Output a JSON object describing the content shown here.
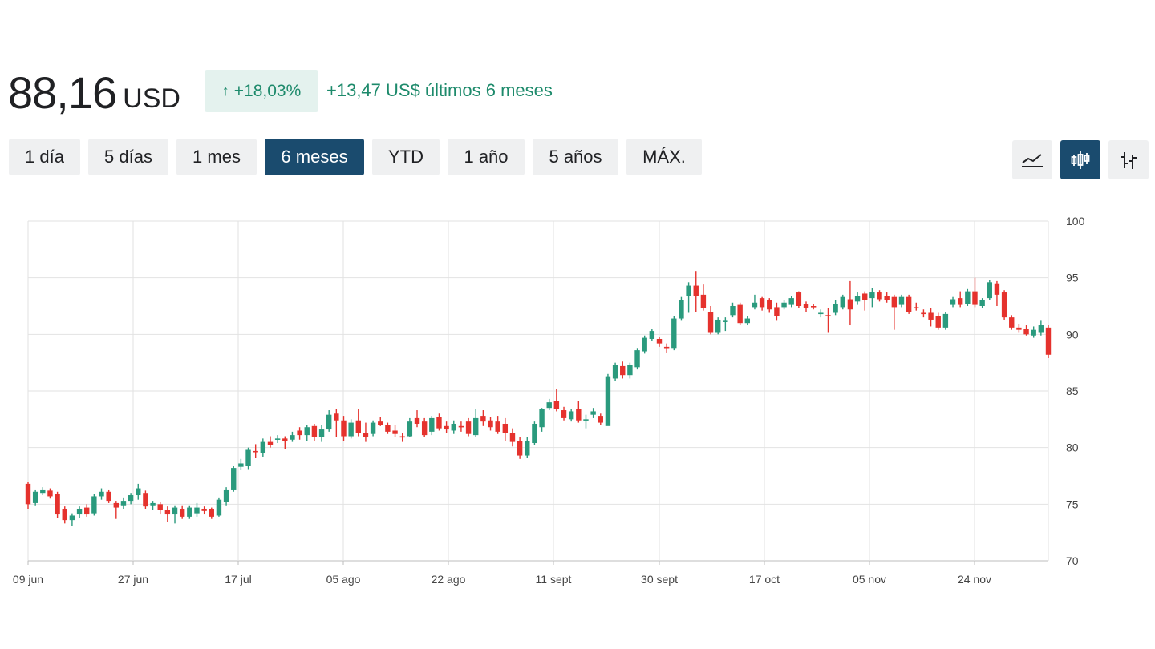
{
  "quote": {
    "price": "88,16",
    "currency": "USD",
    "change_percent": "+18,03%",
    "change_percent_arrow": "↑",
    "change_text": "+13,47 US$ últimos 6 meses"
  },
  "ranges": [
    {
      "label": "1 día",
      "active": false
    },
    {
      "label": "5 días",
      "active": false
    },
    {
      "label": "1 mes",
      "active": false
    },
    {
      "label": "6 meses",
      "active": true
    },
    {
      "label": "YTD",
      "active": false
    },
    {
      "label": "1 año",
      "active": false
    },
    {
      "label": "5 años",
      "active": false
    },
    {
      "label": "MÁX.",
      "active": false
    }
  ],
  "chart_types": [
    {
      "icon": "line-chart-icon",
      "active": false
    },
    {
      "icon": "candlestick-chart-icon",
      "active": true
    },
    {
      "icon": "ohlc-chart-icon",
      "active": false
    }
  ],
  "colors": {
    "up": "#2a9a7d",
    "down": "#e5322d",
    "accent": "#1a4b6e",
    "badge_bg": "#e4f2ee",
    "badge_text": "#1d8a6b",
    "grid": "#e2e2e2"
  },
  "chart_data": {
    "type": "candlestick",
    "x_ticks": [
      "09 jun",
      "27 jun",
      "17 jul",
      "05 ago",
      "22 ago",
      "11 sept",
      "30 sept",
      "17 oct",
      "05 nov",
      "24 nov"
    ],
    "y_ticks": [
      "100",
      "95",
      "90",
      "85",
      "80",
      "75",
      "70"
    ],
    "ylim": [
      70,
      100
    ],
    "grid": true,
    "series": [
      [
        76.8,
        75.0,
        77.0,
        74.6
      ],
      [
        75.1,
        76.1,
        76.3,
        74.9
      ],
      [
        76.0,
        76.3,
        76.5,
        75.8
      ],
      [
        76.2,
        75.7,
        76.4,
        75.5
      ],
      [
        75.9,
        74.1,
        76.1,
        73.8
      ],
      [
        74.6,
        73.6,
        74.8,
        73.3
      ],
      [
        73.6,
        74.0,
        74.2,
        73.1
      ],
      [
        74.1,
        74.6,
        74.8,
        73.8
      ],
      [
        74.7,
        74.1,
        75.0,
        73.9
      ],
      [
        74.2,
        75.7,
        75.9,
        74.0
      ],
      [
        75.7,
        76.1,
        76.4,
        75.4
      ],
      [
        76.1,
        75.3,
        76.3,
        75.1
      ],
      [
        75.1,
        74.7,
        75.3,
        73.7
      ],
      [
        74.9,
        75.3,
        75.6,
        74.6
      ],
      [
        75.3,
        75.8,
        76.0,
        75.0
      ],
      [
        75.8,
        76.4,
        76.8,
        75.4
      ],
      [
        76.0,
        74.8,
        76.2,
        74.6
      ],
      [
        74.9,
        75.1,
        75.3,
        74.5
      ],
      [
        75.0,
        74.5,
        75.2,
        74.1
      ],
      [
        74.5,
        74.1,
        74.8,
        73.4
      ],
      [
        74.1,
        74.7,
        74.9,
        73.3
      ],
      [
        74.6,
        73.9,
        74.9,
        73.7
      ],
      [
        73.9,
        74.7,
        74.9,
        73.7
      ],
      [
        74.2,
        74.7,
        75.1,
        73.9
      ],
      [
        74.6,
        74.4,
        74.8,
        74.1
      ],
      [
        74.6,
        73.9,
        74.7,
        73.7
      ],
      [
        74.0,
        75.4,
        75.6,
        73.9
      ],
      [
        75.2,
        76.3,
        76.5,
        74.9
      ],
      [
        76.3,
        78.2,
        78.4,
        76.1
      ],
      [
        78.3,
        78.6,
        79.0,
        78.0
      ],
      [
        78.4,
        79.8,
        80.0,
        78.1
      ],
      [
        79.7,
        79.6,
        80.3,
        79.1
      ],
      [
        79.5,
        80.5,
        80.8,
        79.2
      ],
      [
        80.5,
        80.2,
        81.0,
        80.0
      ],
      [
        80.7,
        80.8,
        81.1,
        80.4
      ],
      [
        80.8,
        80.6,
        81.0,
        79.9
      ],
      [
        80.7,
        81.1,
        81.4,
        80.5
      ],
      [
        81.5,
        81.1,
        81.8,
        80.7
      ],
      [
        81.1,
        81.8,
        82.0,
        80.6
      ],
      [
        81.9,
        80.9,
        82.1,
        80.6
      ],
      [
        80.9,
        81.6,
        82.0,
        80.5
      ],
      [
        81.6,
        82.9,
        83.3,
        81.4
      ],
      [
        83.0,
        82.4,
        83.4,
        80.9
      ],
      [
        82.4,
        81.0,
        82.8,
        80.6
      ],
      [
        81.0,
        82.2,
        82.5,
        80.8
      ],
      [
        82.4,
        81.3,
        83.4,
        81.0
      ],
      [
        81.3,
        80.9,
        82.2,
        80.5
      ],
      [
        81.2,
        82.2,
        82.4,
        81.0
      ],
      [
        82.3,
        82.0,
        82.7,
        81.9
      ],
      [
        82.0,
        81.4,
        82.2,
        81.2
      ],
      [
        81.5,
        81.2,
        82.0,
        80.9
      ],
      [
        81.0,
        80.9,
        81.3,
        80.5
      ],
      [
        81.0,
        82.3,
        82.6,
        80.9
      ],
      [
        82.6,
        82.1,
        83.3,
        81.8
      ],
      [
        82.3,
        81.1,
        82.6,
        80.9
      ],
      [
        81.4,
        82.6,
        82.8,
        81.1
      ],
      [
        82.7,
        81.7,
        83.0,
        81.5
      ],
      [
        81.9,
        81.6,
        82.3,
        81.3
      ],
      [
        81.5,
        82.1,
        82.4,
        81.2
      ],
      [
        81.9,
        81.8,
        82.3,
        81.4
      ],
      [
        82.3,
        81.2,
        82.6,
        81.0
      ],
      [
        81.1,
        82.6,
        83.4,
        80.9
      ],
      [
        82.8,
        82.3,
        83.3,
        81.9
      ],
      [
        82.4,
        81.8,
        82.7,
        81.5
      ],
      [
        82.3,
        81.4,
        82.8,
        81.2
      ],
      [
        82.1,
        81.3,
        82.6,
        80.6
      ],
      [
        81.3,
        80.5,
        81.7,
        80.1
      ],
      [
        80.6,
        79.3,
        80.9,
        79.0
      ],
      [
        79.3,
        80.6,
        80.9,
        79.1
      ],
      [
        80.4,
        82.1,
        82.3,
        80.2
      ],
      [
        81.8,
        83.4,
        83.5,
        81.4
      ],
      [
        83.5,
        84.0,
        84.3,
        83.3
      ],
      [
        84.1,
        83.4,
        85.2,
        83.2
      ],
      [
        83.3,
        82.6,
        83.6,
        82.4
      ],
      [
        82.5,
        83.2,
        83.4,
        82.3
      ],
      [
        83.4,
        82.4,
        84.1,
        82.2
      ],
      [
        82.4,
        82.5,
        82.9,
        81.7
      ],
      [
        82.9,
        83.2,
        83.5,
        82.6
      ],
      [
        82.8,
        82.2,
        83.0,
        82.0
      ],
      [
        81.9,
        86.3,
        86.5,
        83.6
      ],
      [
        86.1,
        87.3,
        87.5,
        85.9
      ],
      [
        87.2,
        86.4,
        87.6,
        86.1
      ],
      [
        86.4,
        87.3,
        87.5,
        86.1
      ],
      [
        87.1,
        88.6,
        88.8,
        86.9
      ],
      [
        88.5,
        89.7,
        89.9,
        88.3
      ],
      [
        89.6,
        90.3,
        90.5,
        89.4
      ],
      [
        89.6,
        89.2,
        89.8,
        88.9
      ],
      [
        88.9,
        88.8,
        89.2,
        88.4
      ],
      [
        88.8,
        91.4,
        91.6,
        88.6
      ],
      [
        91.4,
        93.0,
        93.3,
        91.2
      ],
      [
        93.4,
        94.3,
        94.6,
        91.9
      ],
      [
        94.3,
        93.4,
        95.6,
        92.0
      ],
      [
        93.5,
        92.3,
        94.4,
        92.1
      ],
      [
        92.0,
        90.2,
        92.5,
        90.0
      ],
      [
        90.2,
        91.3,
        91.5,
        90.0
      ],
      [
        91.1,
        91.2,
        91.5,
        90.3
      ],
      [
        91.7,
        92.5,
        92.8,
        91.5
      ],
      [
        92.6,
        91.0,
        92.8,
        90.8
      ],
      [
        91.0,
        91.4,
        91.6,
        90.8
      ],
      [
        92.4,
        92.8,
        93.5,
        92.2
      ],
      [
        93.2,
        92.4,
        93.3,
        92.1
      ],
      [
        93.0,
        92.2,
        93.2,
        91.9
      ],
      [
        92.4,
        91.6,
        92.8,
        91.2
      ],
      [
        92.4,
        92.8,
        93.0,
        92.2
      ],
      [
        92.6,
        93.2,
        93.4,
        92.4
      ],
      [
        93.7,
        92.5,
        93.8,
        92.3
      ],
      [
        92.7,
        92.3,
        92.9,
        92.0
      ],
      [
        92.5,
        92.4,
        92.7,
        92.2
      ],
      [
        91.9,
        91.9,
        92.2,
        91.5
      ],
      [
        91.7,
        91.6,
        92.3,
        90.2
      ],
      [
        91.9,
        92.7,
        93.0,
        91.7
      ],
      [
        92.4,
        93.3,
        93.5,
        92.2
      ],
      [
        93.1,
        92.2,
        94.7,
        90.8
      ],
      [
        92.9,
        93.4,
        93.7,
        92.6
      ],
      [
        93.6,
        93.0,
        93.8,
        92.1
      ],
      [
        93.2,
        93.7,
        94.1,
        92.4
      ],
      [
        93.7,
        93.1,
        93.9,
        92.9
      ],
      [
        93.4,
        93.0,
        93.7,
        92.8
      ],
      [
        93.3,
        92.4,
        93.5,
        90.4
      ],
      [
        92.6,
        93.3,
        93.5,
        92.4
      ],
      [
        93.3,
        92.0,
        93.5,
        91.8
      ],
      [
        92.4,
        92.3,
        92.8,
        92.1
      ],
      [
        91.9,
        91.8,
        92.2,
        91.5
      ],
      [
        91.9,
        91.3,
        92.3,
        90.7
      ],
      [
        91.6,
        90.6,
        91.9,
        90.4
      ],
      [
        90.6,
        91.8,
        92.0,
        90.4
      ],
      [
        92.6,
        93.1,
        93.3,
        92.4
      ],
      [
        93.2,
        92.6,
        93.8,
        92.4
      ],
      [
        92.7,
        93.8,
        94.0,
        92.5
      ],
      [
        93.8,
        92.6,
        95.0,
        92.4
      ],
      [
        92.5,
        93.0,
        93.2,
        92.3
      ],
      [
        93.2,
        94.6,
        94.8,
        93.0
      ],
      [
        94.5,
        93.5,
        94.7,
        92.5
      ],
      [
        93.7,
        91.5,
        93.9,
        91.3
      ],
      [
        91.5,
        90.6,
        91.7,
        90.4
      ],
      [
        90.6,
        90.4,
        90.9,
        90.2
      ],
      [
        90.5,
        90.0,
        90.8,
        89.9
      ],
      [
        89.9,
        90.4,
        90.7,
        89.7
      ],
      [
        90.2,
        90.8,
        91.2,
        89.9
      ],
      [
        90.6,
        88.2,
        90.8,
        87.9
      ]
    ]
  }
}
